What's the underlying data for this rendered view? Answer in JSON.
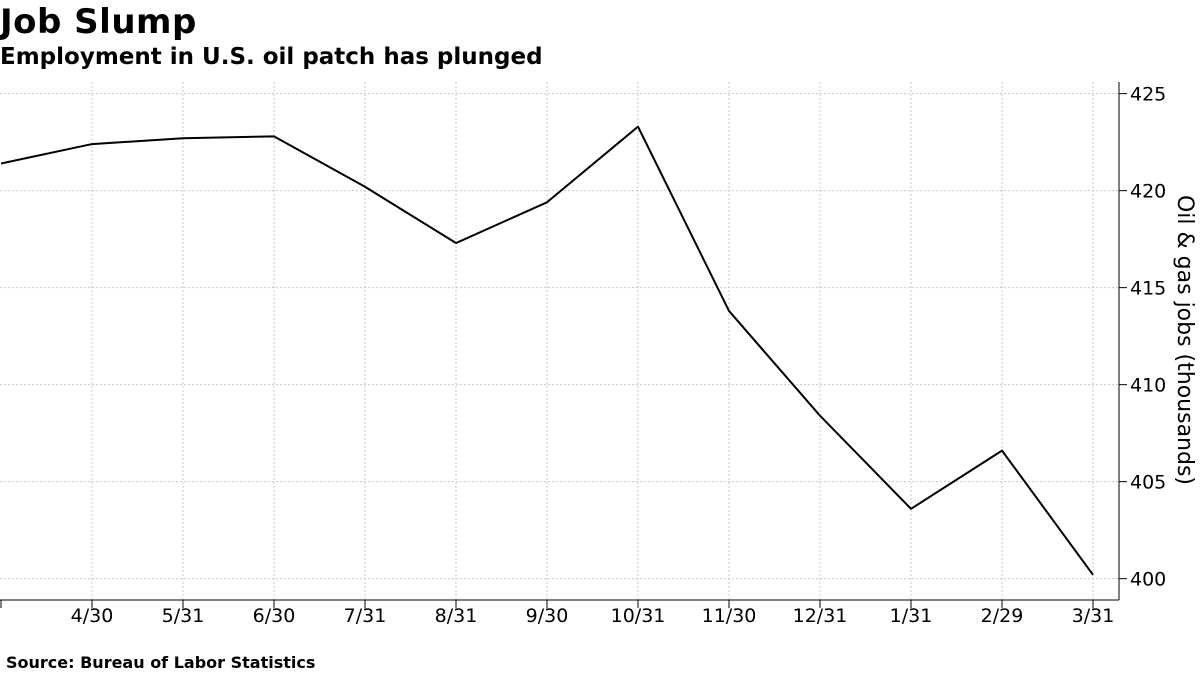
{
  "title": "Job Slump",
  "subtitle": "Employment in U.S. oil patch has plunged",
  "source": "Source: Bureau of Labor Statistics",
  "chart_data": {
    "type": "line",
    "title": "Job Slump",
    "subtitle": "Employment in U.S. oil patch has plunged",
    "xlabel": "",
    "ylabel": "Oil & gas jobs (thousands)",
    "x": [
      "3/31",
      "4/30",
      "5/31",
      "6/30",
      "7/31",
      "8/31",
      "9/30",
      "10/31",
      "11/30",
      "12/31",
      "1/31",
      "2/29",
      "3/31"
    ],
    "x_tick_labels": [
      "4/30",
      "5/31",
      "6/30",
      "7/31",
      "8/31",
      "9/30",
      "10/31",
      "11/30",
      "12/31",
      "1/31",
      "2/29",
      "3/31"
    ],
    "series": [
      {
        "values": [
          421.4,
          422.4,
          422.7,
          422.8,
          420.2,
          417.3,
          419.4,
          423.3,
          413.8,
          408.4,
          403.6,
          406.6,
          400.2
        ],
        "color": "#000000"
      }
    ],
    "ylim": [
      398.9,
      425.6
    ],
    "y_ticks": [
      400,
      405,
      410,
      415,
      420,
      425
    ],
    "y_axis_position": "right",
    "grid": true
  }
}
